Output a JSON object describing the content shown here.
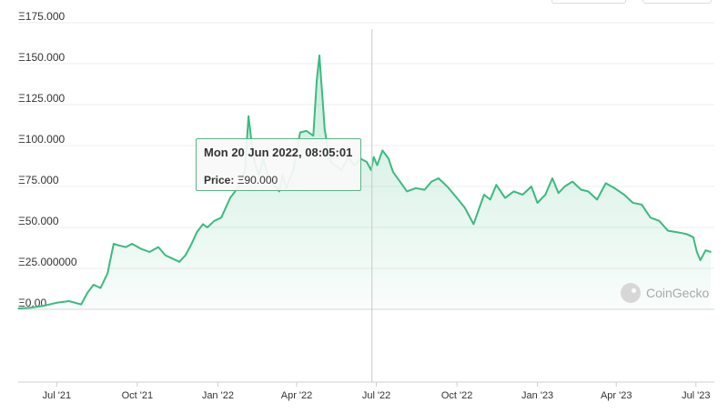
{
  "chart_data": {
    "type": "area",
    "series": [
      {
        "x": [
          "2021-05-18",
          "2021-06-01",
          "2021-06-15",
          "2021-07-01",
          "2021-07-15",
          "2021-07-29",
          "2021-08-05",
          "2021-08-12",
          "2021-08-20",
          "2021-08-28",
          "2021-09-04",
          "2021-09-10",
          "2021-09-18",
          "2021-09-25",
          "2021-10-05",
          "2021-10-15",
          "2021-10-25",
          "2021-11-02",
          "2021-11-10",
          "2021-11-18",
          "2021-11-25",
          "2021-12-02",
          "2021-12-08",
          "2021-12-15",
          "2021-12-20",
          "2021-12-28",
          "2022-01-05",
          "2022-01-15",
          "2022-01-25",
          "2022-02-01",
          "2022-02-05",
          "2022-02-10",
          "2022-02-13",
          "2022-02-17",
          "2022-02-22",
          "2022-02-28",
          "2022-03-08",
          "2022-03-12",
          "2022-03-16",
          "2022-03-20",
          "2022-03-28",
          "2022-04-05",
          "2022-04-12",
          "2022-04-20",
          "2022-04-24",
          "2022-04-27",
          "2022-05-01",
          "2022-05-03",
          "2022-05-06",
          "2022-05-10",
          "2022-05-15",
          "2022-05-22",
          "2022-05-30",
          "2022-06-06",
          "2022-06-13",
          "2022-06-20",
          "2022-06-25",
          "2022-06-28",
          "2022-07-02",
          "2022-07-08",
          "2022-07-15",
          "2022-07-20",
          "2022-07-28",
          "2022-08-05",
          "2022-08-15",
          "2022-08-25",
          "2022-09-02",
          "2022-09-10",
          "2022-09-20",
          "2022-10-01",
          "2022-10-10",
          "2022-10-20",
          "2022-11-01",
          "2022-11-08",
          "2022-11-15",
          "2022-11-25",
          "2022-12-05",
          "2022-12-15",
          "2022-12-25",
          "2023-01-01",
          "2023-01-10",
          "2023-01-18",
          "2023-01-25",
          "2023-02-01",
          "2023-02-10",
          "2023-02-20",
          "2023-02-28",
          "2023-03-10",
          "2023-03-20",
          "2023-03-30",
          "2023-04-10",
          "2023-04-20",
          "2023-04-30",
          "2023-05-10",
          "2023-05-20",
          "2023-05-30",
          "2023-06-10",
          "2023-06-20",
          "2023-06-28",
          "2023-07-02",
          "2023-07-06",
          "2023-07-12",
          "2023-07-18"
        ],
        "values": [
          0.5,
          1,
          2,
          4,
          5,
          3,
          10,
          15,
          13,
          22,
          40,
          39,
          38,
          40,
          37,
          35,
          38,
          33,
          31,
          29,
          33,
          40,
          47,
          52,
          50,
          54,
          56,
          68,
          75,
          85,
          118,
          95,
          88,
          82,
          92,
          80,
          75,
          72,
          82,
          74,
          85,
          108,
          109,
          106,
          140,
          155,
          125,
          110,
          100,
          90,
          88,
          85,
          93,
          88,
          92,
          90,
          85,
          93,
          88,
          97,
          92,
          84,
          78,
          72,
          74,
          73,
          78,
          80,
          75,
          68,
          62,
          52,
          70,
          67,
          76,
          68,
          72,
          70,
          75,
          65,
          70,
          80,
          71,
          75,
          78,
          73,
          72,
          67,
          77,
          74,
          70,
          65,
          64,
          56,
          54,
          48,
          47,
          46,
          44,
          35,
          30,
          36,
          35
        ]
      }
    ],
    "yticks": [
      {
        "v": 0,
        "label": "Ξ0.00"
      },
      {
        "v": 25,
        "label": "Ξ25.000000"
      },
      {
        "v": 50,
        "label": "Ξ50.000"
      },
      {
        "v": 75,
        "label": "Ξ75.000"
      },
      {
        "v": 100,
        "label": "Ξ100.000"
      },
      {
        "v": 125,
        "label": "Ξ125.000"
      },
      {
        "v": 150,
        "label": "Ξ150.000"
      },
      {
        "v": 175,
        "label": "Ξ175.000"
      }
    ],
    "xticks": [
      {
        "date": "2021-07-01",
        "label": "Jul '21"
      },
      {
        "date": "2021-10-01",
        "label": "Oct '21"
      },
      {
        "date": "2022-01-01",
        "label": "Jan '22"
      },
      {
        "date": "2022-04-01",
        "label": "Apr '22"
      },
      {
        "date": "2022-07-01",
        "label": "Jul '22"
      },
      {
        "date": "2022-10-01",
        "label": "Oct '22"
      },
      {
        "date": "2023-01-01",
        "label": "Jan '23"
      },
      {
        "date": "2023-04-01",
        "label": "Apr '23"
      },
      {
        "date": "2023-07-01",
        "label": "Jul '23"
      }
    ],
    "ylim": [
      0,
      175
    ],
    "xlim": [
      "2021-05-18",
      "2023-07-22"
    ],
    "grid": true,
    "line_color": "#3cba81",
    "fill_color": "#3cba81"
  },
  "tooltip": {
    "date": "Mon 20 Jun 2022, 08:05:01",
    "price_label": "Price:",
    "price_value": "Ξ90.000",
    "crosshair_date": "2022-06-26"
  },
  "watermark": {
    "brand": "CoinGecko"
  }
}
